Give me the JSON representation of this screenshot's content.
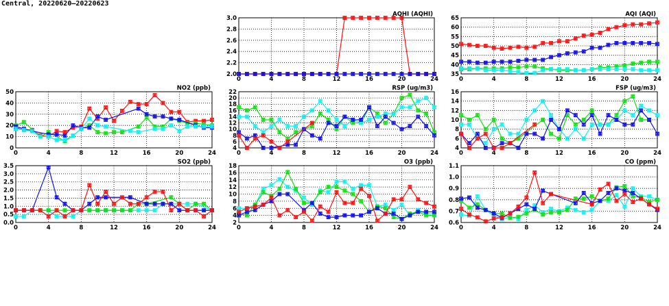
{
  "page_title": "Central, 20220620–20220623",
  "colors": {
    "red": "#ff1010",
    "green": "#10e010",
    "blue": "#1010ee",
    "cyan": "#10f0f0"
  },
  "chart_data": [
    {
      "id": "aqhi",
      "type": "line",
      "title": "AQHI (AQHI)",
      "ylim": [
        2.0,
        3.0
      ],
      "yticks": [
        "2.0",
        "2.2",
        "2.4",
        "2.6",
        "2.8",
        "3.0"
      ],
      "xlim": [
        0,
        24
      ],
      "xticks": [
        "0",
        "4",
        "8",
        "12",
        "16",
        "20",
        "24"
      ],
      "series": [
        {
          "color": "red",
          "values": [
            2,
            2,
            2,
            2,
            2,
            2,
            2,
            2,
            2,
            2,
            2,
            2,
            2,
            3,
            3,
            3,
            3,
            3,
            3,
            3,
            3,
            2,
            2,
            2,
            2
          ]
        },
        {
          "color": "blue",
          "values": [
            2,
            2,
            2,
            2,
            2,
            2,
            2,
            2,
            2,
            2,
            2,
            2,
            2,
            2,
            2,
            2,
            2,
            2,
            2,
            2,
            2,
            2,
            2,
            2,
            2
          ]
        }
      ]
    },
    {
      "id": "aqi",
      "type": "line",
      "title": "AQI (AQI)",
      "ylim": [
        35,
        65
      ],
      "yticks": [
        "35",
        "40",
        "45",
        "50",
        "55",
        "60",
        "65"
      ],
      "xlim": [
        0,
        24
      ],
      "xticks": [
        "0",
        "4",
        "8",
        "12",
        "16",
        "20",
        "24"
      ],
      "series": [
        {
          "color": "red",
          "values": [
            51,
            50.5,
            50,
            50,
            49,
            48.5,
            49,
            49.5,
            49,
            49.5,
            51.5,
            51.5,
            52.5,
            52.5,
            54,
            55.5,
            56,
            57,
            59,
            60,
            61,
            61.5,
            61.5,
            62,
            62.5
          ]
        },
        {
          "color": "blue",
          "values": [
            41.5,
            41.5,
            41,
            41,
            41.5,
            41.5,
            41.5,
            42,
            42.5,
            42.5,
            42.5,
            44,
            45,
            46,
            46.5,
            47,
            49,
            49,
            50.5,
            51.5,
            51.5,
            51.5,
            51.5,
            51.5,
            51
          ]
        },
        {
          "color": "green",
          "values": [
            37.5,
            37.5,
            38,
            38,
            38,
            38,
            38.5,
            38.5,
            39,
            39,
            38,
            37.5,
            37,
            37,
            37,
            37,
            37.5,
            38.5,
            38.5,
            39,
            39.5,
            40.5,
            41,
            41.5,
            41.5
          ]
        },
        {
          "color": "cyan",
          "values": [
            38,
            38,
            38,
            37,
            37,
            37,
            36.5,
            36,
            35.5,
            35.5,
            37,
            37.5,
            37.5,
            37.5,
            37,
            37,
            37.5,
            37.5,
            37.5,
            37.5,
            37.5,
            37.5,
            37,
            37,
            37
          ]
        }
      ]
    },
    {
      "id": "no2",
      "type": "line",
      "title": "NO2 (ppb)",
      "ylim": [
        0,
        50
      ],
      "yticks": [
        "0",
        "10",
        "20",
        "30",
        "40",
        "50"
      ],
      "xlim": [
        0,
        24
      ],
      "xticks": [
        "0",
        "4",
        "8",
        "12",
        "16",
        "20",
        "24"
      ],
      "series": [
        {
          "color": "red",
          "values": [
            18,
            16,
            16,
            11,
            10,
            15,
            14,
            18,
            19,
            35,
            26,
            36,
            24,
            33,
            41,
            39,
            39,
            47,
            40,
            32,
            32,
            23,
            24,
            24,
            25
          ]
        },
        {
          "color": "green",
          "values": [
            20,
            23,
            null,
            10,
            14,
            null,
            6,
            11,
            17,
            20,
            14,
            13,
            14,
            14,
            null,
            19,
            27,
            19,
            19,
            26,
            24,
            22,
            22,
            21,
            20
          ]
        },
        {
          "color": "blue",
          "values": [
            19,
            17,
            15,
            null,
            12,
            12,
            11,
            20,
            18,
            18,
            28,
            25,
            null,
            null,
            null,
            35,
            30,
            28,
            28,
            26,
            25,
            null,
            20,
            18,
            18
          ]
        },
        {
          "color": "cyan",
          "values": [
            17,
            16,
            15,
            10,
            10,
            7,
            7,
            11,
            17,
            26,
            20,
            19,
            null,
            null,
            15,
            14,
            null,
            17,
            17,
            20,
            15,
            19,
            19,
            19,
            19
          ]
        }
      ]
    },
    {
      "id": "rsp",
      "type": "line",
      "title": "RSP (ug/m3)",
      "ylim": [
        4,
        22
      ],
      "yticks": [
        "4",
        "6",
        "8",
        "10",
        "12",
        "14",
        "16",
        "18",
        "20",
        "22"
      ],
      "xlim": [
        0,
        24
      ],
      "xticks": [
        "0",
        "4",
        "8",
        "12",
        "16",
        "20",
        "24"
      ],
      "series": [
        {
          "color": "green",
          "values": [
            17,
            16,
            17,
            13,
            13,
            9,
            7,
            9,
            10,
            11,
            15,
            13,
            10,
            14,
            12,
            12,
            17,
            15,
            12,
            15,
            20,
            21,
            16,
            15,
            9
          ]
        },
        {
          "color": "cyan",
          "values": [
            14,
            14,
            11,
            9,
            11,
            13,
            11,
            11,
            14,
            16,
            19,
            16,
            13,
            11,
            13,
            12,
            13,
            14,
            15,
            15,
            17,
            17,
            19,
            20,
            17
          ]
        },
        {
          "color": "blue",
          "values": [
            9,
            7,
            8,
            4,
            4,
            null,
            5,
            5,
            10,
            8,
            7,
            12,
            11,
            14,
            13,
            13,
            17,
            11,
            14,
            12,
            10,
            11,
            14,
            11,
            8
          ]
        },
        {
          "color": "red",
          "values": [
            8,
            4,
            7,
            8,
            6,
            4,
            6,
            null,
            null,
            12,
            null,
            null,
            null,
            null,
            null,
            null,
            null,
            null,
            null,
            null,
            null,
            null,
            null,
            null,
            null
          ]
        }
      ]
    },
    {
      "id": "fsp",
      "type": "line",
      "title": "FSP (ug/m3)",
      "ylim": [
        4,
        16
      ],
      "yticks": [
        "4",
        "6",
        "8",
        "10",
        "12",
        "14",
        "16"
      ],
      "xlim": [
        0,
        24
      ],
      "xticks": [
        "0",
        "4",
        "8",
        "12",
        "16",
        "20",
        "24"
      ],
      "series": [
        {
          "color": "green",
          "values": [
            11,
            10,
            11,
            8,
            10,
            6,
            5,
            6,
            null,
            null,
            10,
            7,
            6,
            11,
            9,
            10,
            12,
            9,
            9,
            11,
            14,
            15,
            10,
            10,
            null
          ]
        },
        {
          "color": "cyan",
          "values": [
            9,
            9,
            6,
            5,
            8,
            9,
            7,
            7,
            10,
            12,
            14,
            11,
            8,
            6,
            8,
            6,
            9,
            9,
            9,
            10,
            12,
            11,
            13,
            12,
            11
          ]
        },
        {
          "color": "blue",
          "values": [
            7,
            5,
            7,
            4,
            4,
            5,
            5,
            4,
            7,
            7,
            6,
            10,
            8,
            12,
            11,
            9,
            11,
            7,
            11,
            10,
            9,
            9,
            12,
            10,
            7
          ]
        },
        {
          "color": "red",
          "values": [
            7,
            4,
            6,
            7,
            4,
            4,
            5,
            null,
            null,
            9,
            null,
            null,
            null,
            null,
            null,
            null,
            null,
            null,
            null,
            null,
            null,
            null,
            null,
            null,
            null
          ]
        }
      ]
    },
    {
      "id": "so2",
      "type": "line",
      "title": "SO2 (ppb)",
      "ylim": [
        0,
        3.5
      ],
      "yticks": [
        "0.0",
        "0.5",
        "1.0",
        "1.5",
        "2.0",
        "2.5",
        "3.0",
        "3.5"
      ],
      "xlim": [
        0,
        24
      ],
      "xticks": [
        "0",
        "4",
        "8",
        "12",
        "16",
        "20",
        "24"
      ],
      "series": [
        {
          "color": "cyan",
          "values": [
            0.38,
            0.38,
            0.75,
            0.75,
            0.75,
            0.38,
            0.38,
            0.38,
            0.75,
            0.75,
            0.75,
            0.75,
            0.75,
            0.75,
            0.75,
            0.75,
            0.75,
            0.75,
            1.15,
            null,
            1.15,
            1.15,
            1.15,
            null,
            0.75
          ]
        },
        {
          "color": "green",
          "values": [
            0.75,
            0.75,
            0.75,
            0.75,
            0.75,
            0.75,
            0.75,
            0.75,
            0.75,
            0.75,
            0.75,
            0.75,
            0.75,
            0.75,
            0.75,
            1.15,
            1.15,
            null,
            null,
            1.55,
            1.15,
            0.75,
            1.15,
            1.15,
            0.75
          ]
        },
        {
          "color": "blue",
          "values": [
            0.75,
            0.75,
            0.75,
            null,
            3.4,
            1.55,
            1.15,
            0.75,
            0.75,
            1.15,
            1.55,
            1.55,
            null,
            null,
            1.55,
            null,
            1.15,
            1.15,
            1.15,
            1.15,
            0.75,
            0.75,
            0.75,
            0.75,
            0.75
          ]
        },
        {
          "color": "red",
          "values": [
            0.75,
            0.75,
            0.75,
            0.75,
            0.38,
            0.75,
            0.38,
            0.75,
            0.75,
            2.3,
            1.15,
            1.9,
            1.15,
            1.55,
            1.15,
            1.15,
            1.55,
            1.9,
            1.9,
            0.75,
            1.15,
            0.75,
            0.75,
            0.38,
            0.75
          ]
        }
      ]
    },
    {
      "id": "o3",
      "type": "line",
      "title": "O3 (ppb)",
      "ylim": [
        2,
        18
      ],
      "yticks": [
        "2",
        "4",
        "6",
        "8",
        "10",
        "12",
        "14",
        "16",
        "18"
      ],
      "xlim": [
        0,
        24
      ],
      "xticks": [
        "0",
        "4",
        "8",
        "12",
        "16",
        "20",
        "24"
      ],
      "series": [
        {
          "color": "cyan",
          "values": [
            6,
            6,
            7,
            11.5,
            12.5,
            14.2,
            12,
            11,
            9,
            7,
            11,
            10.5,
            13.5,
            13.5,
            11.5,
            12.5,
            12.5,
            6.5,
            7,
            5.5,
            7,
            4,
            5.5,
            4.5,
            4.5
          ]
        },
        {
          "color": "green",
          "values": [
            4.5,
            4,
            7,
            10.5,
            9.5,
            11.5,
            16.2,
            11.5,
            7.5,
            7.5,
            10.5,
            12,
            12,
            11,
            10,
            8,
            5,
            6.5,
            6,
            3.5,
            3,
            4.5,
            5,
            4,
            4
          ]
        },
        {
          "color": "blue",
          "values": [
            4,
            5,
            5.5,
            7,
            8,
            10,
            10,
            null,
            5.5,
            7.5,
            4.5,
            3.5,
            3.5,
            4,
            4,
            4,
            5,
            6,
            4.5,
            4.5,
            3,
            4,
            5,
            5,
            5
          ]
        },
        {
          "color": "red",
          "values": [
            5,
            6,
            6.5,
            7,
            9,
            4,
            5.5,
            3.5,
            5,
            2.5,
            6.5,
            5,
            10.5,
            7.5,
            7.5,
            11.5,
            9.5,
            2.5,
            4.5,
            8.5,
            8.5,
            12,
            8.5,
            7.5,
            6.5
          ]
        }
      ]
    },
    {
      "id": "co",
      "type": "line",
      "title": "CO (ppm)",
      "ylim": [
        0.6,
        1.1
      ],
      "yticks": [
        "0.6",
        "0.7",
        "0.8",
        "0.9",
        "1.0",
        "1.1"
      ],
      "xlim": [
        0,
        24
      ],
      "xticks": [
        "0",
        "4",
        "8",
        "12",
        "16",
        "20",
        "24"
      ],
      "series": [
        {
          "color": "cyan",
          "values": [
            0.67,
            0.66,
            0.83,
            0.71,
            0.66,
            0.63,
            0.65,
            0.63,
            0.71,
            0.75,
            0.69,
            0.72,
            0.7,
            0.73,
            0.71,
            0.69,
            0.71,
            0.79,
            0.79,
            0.84,
            0.74,
            0.9,
            0.83,
            0.83,
            0.8
          ]
        },
        {
          "color": "green",
          "values": [
            0.79,
            0.73,
            0.76,
            0.71,
            0.68,
            0.68,
            0.64,
            0.65,
            0.68,
            0.71,
            0.67,
            0.69,
            0.69,
            0.71,
            0.81,
            0.81,
            0.83,
            0.79,
            0.81,
            0.91,
            0.92,
            0.83,
            0.82,
            0.78,
            0.8
          ]
        },
        {
          "color": "blue",
          "values": [
            0.81,
            0.82,
            0.73,
            0.71,
            0.68,
            0.64,
            0.68,
            0.72,
            0.76,
            0.72,
            0.88,
            0.85,
            null,
            null,
            0.77,
            0.86,
            0.77,
            0.79,
            0.86,
            0.9,
            0.88,
            0.86,
            0.81,
            0.76,
            0.71
          ]
        },
        {
          "color": "red",
          "values": [
            0.72,
            0.67,
            0.645,
            0.61,
            0.635,
            0.645,
            0.68,
            0.74,
            0.82,
            1.04,
            0.77,
            0.85,
            null,
            null,
            null,
            null,
            0.76,
            0.89,
            0.94,
            0.79,
            0.85,
            0.78,
            0.81,
            0.76,
            0.72
          ]
        }
      ]
    }
  ]
}
